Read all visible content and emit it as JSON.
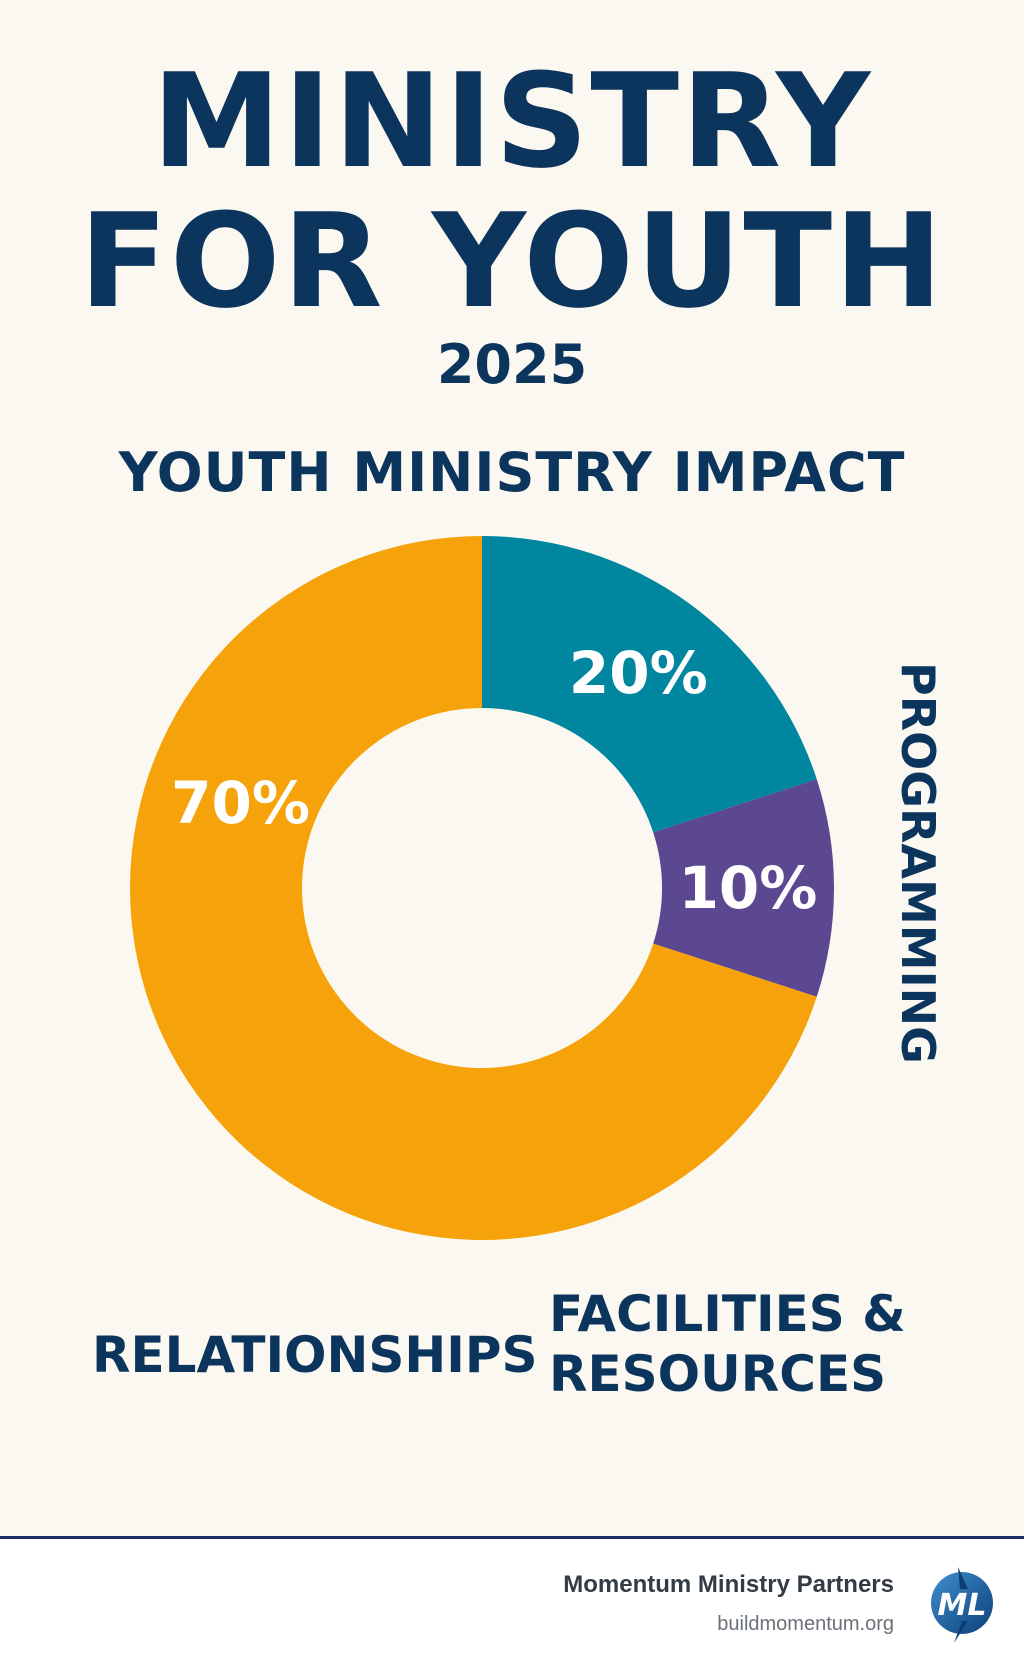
{
  "header": {
    "title_line1": "MINISTRY",
    "title_line2": "FOR YOUTH",
    "year": "2025"
  },
  "chart_data": {
    "type": "pie",
    "variant": "donut",
    "title": "YOUTH MINISTRY IMPACT",
    "slices": [
      {
        "label": "PROGRAMMING",
        "value": 20,
        "display": "20%",
        "color": "#00869e"
      },
      {
        "label": "FACILITIES & RESOURCES",
        "value": 10,
        "display": "10%",
        "color": "#5b4890"
      },
      {
        "label": "RELATIONSHIPS",
        "value": 70,
        "display": "70%",
        "color": "#f5a20b"
      }
    ],
    "category_labels": {
      "relationships": "RELATIONSHIPS",
      "facilities_line1": "FACILITIES &",
      "facilities_line2": "RESOURCES",
      "programming": "PROGRAMMING"
    }
  },
  "footer": {
    "organization": "Momentum Ministry Partners",
    "website": "buildmomentum.org",
    "logo_icon": "momentum-logo-icon",
    "logo_text": "ML"
  },
  "colors": {
    "navy": "#0c355d",
    "background": "#fbf8f1",
    "divider": "#1c2f66"
  }
}
